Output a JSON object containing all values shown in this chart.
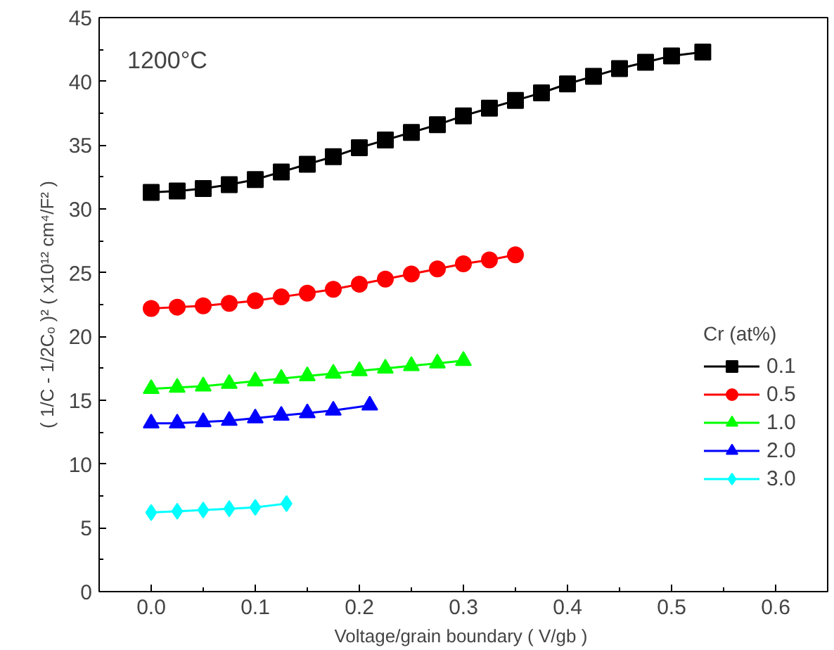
{
  "chart_data": {
    "type": "line",
    "xlabel": "Voltage/grain boundary  ( V/gb )",
    "ylabel": "( 1/C - 1/2Cₒ )² ( x10¹² cm⁴/F² )",
    "legend_title": "Cr (at%)",
    "annotations": [
      "1200°C"
    ],
    "xlim": [
      -0.05,
      0.65
    ],
    "ylim": [
      0,
      45
    ],
    "xticks": [
      {
        "value": 0,
        "label": "0.0"
      },
      {
        "value": 0.1,
        "label": "0.1"
      },
      {
        "value": 0.2,
        "label": "0.2"
      },
      {
        "value": 0.3,
        "label": "0.3"
      },
      {
        "value": 0.4,
        "label": "0.4"
      },
      {
        "value": 0.5,
        "label": "0.5"
      },
      {
        "value": 0.6,
        "label": "0.6"
      }
    ],
    "yticks": [
      0,
      5,
      10,
      15,
      20,
      25,
      30,
      35,
      40,
      45
    ],
    "grid": false,
    "legend": "right",
    "line_style": "solid",
    "series": [
      {
        "name": "0.1",
        "color": "#000000",
        "marker": "square",
        "x": [
          0,
          0.025,
          0.05,
          0.075,
          0.1,
          0.125,
          0.15,
          0.175,
          0.2,
          0.225,
          0.25,
          0.275,
          0.3,
          0.325,
          0.35,
          0.375,
          0.4,
          0.425,
          0.45,
          0.475,
          0.5,
          0.53
        ],
        "values": [
          31.3,
          31.4,
          31.6,
          31.9,
          32.3,
          32.9,
          33.5,
          34.1,
          34.8,
          35.4,
          36.0,
          36.6,
          37.3,
          37.9,
          38.5,
          39.1,
          39.8,
          40.4,
          41.0,
          41.5,
          42.0,
          42.3
        ]
      },
      {
        "name": "0.5",
        "color": "#ff0000",
        "marker": "circle",
        "x": [
          0,
          0.025,
          0.05,
          0.075,
          0.1,
          0.125,
          0.15,
          0.175,
          0.2,
          0.225,
          0.25,
          0.275,
          0.3,
          0.325,
          0.35
        ],
        "values": [
          22.2,
          22.3,
          22.4,
          22.6,
          22.8,
          23.1,
          23.4,
          23.7,
          24.1,
          24.5,
          24.9,
          25.3,
          25.7,
          26.0,
          26.4
        ]
      },
      {
        "name": "1.0",
        "color": "#00ff00",
        "marker": "triangle",
        "x": [
          0,
          0.025,
          0.05,
          0.075,
          0.1,
          0.125,
          0.15,
          0.175,
          0.2,
          0.225,
          0.25,
          0.275,
          0.3
        ],
        "values": [
          15.9,
          16.0,
          16.1,
          16.3,
          16.5,
          16.7,
          16.9,
          17.1,
          17.3,
          17.5,
          17.7,
          17.9,
          18.1
        ]
      },
      {
        "name": "2.0",
        "color": "#0000ff",
        "marker": "triangle",
        "x": [
          0,
          0.025,
          0.05,
          0.075,
          0.1,
          0.125,
          0.15,
          0.175,
          0.21
        ],
        "values": [
          13.2,
          13.2,
          13.3,
          13.4,
          13.6,
          13.8,
          14.0,
          14.2,
          14.6
        ]
      },
      {
        "name": "3.0",
        "color": "#00ffff",
        "marker": "diamond",
        "x": [
          0,
          0.025,
          0.05,
          0.075,
          0.1,
          0.13
        ],
        "values": [
          6.2,
          6.3,
          6.4,
          6.5,
          6.6,
          6.9
        ]
      }
    ]
  }
}
